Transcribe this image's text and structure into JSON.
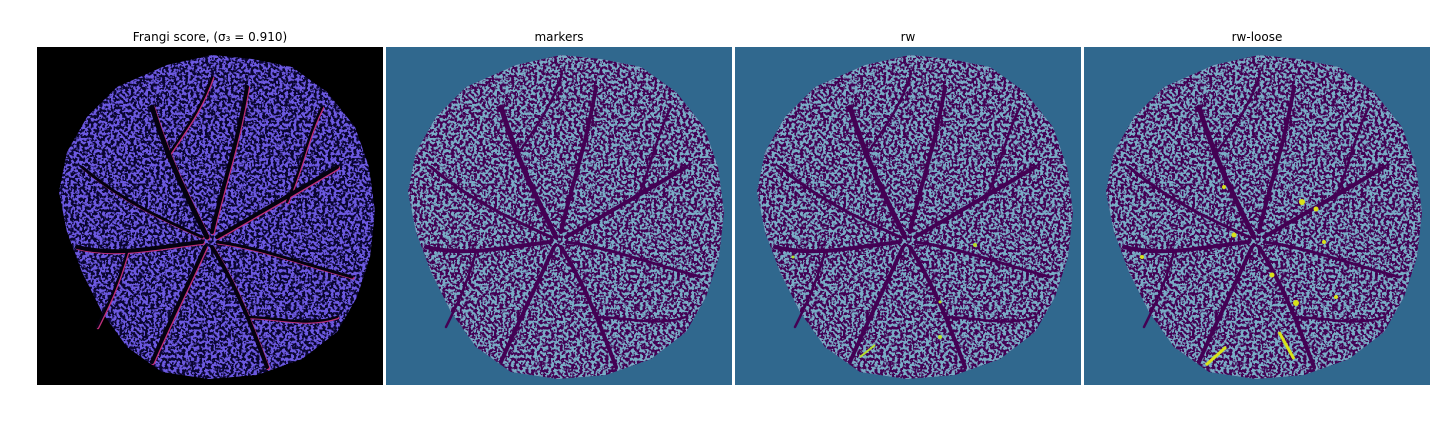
{
  "panels": [
    {
      "title": "Frangi score, (σ₃ = 0.910)"
    },
    {
      "title": "markers"
    },
    {
      "title": "rw"
    },
    {
      "title": "rw-loose"
    }
  ]
}
